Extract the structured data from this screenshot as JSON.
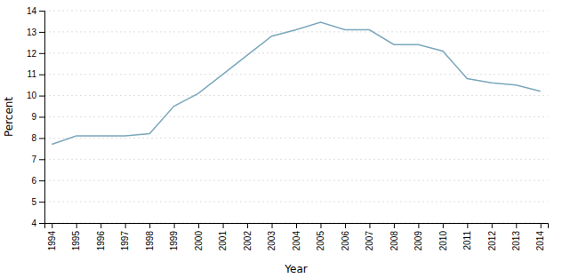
{
  "chart_data": {
    "type": "line",
    "x": [
      1994,
      1995,
      1996,
      1997,
      1998,
      1999,
      2000,
      2001,
      2002,
      2003,
      2004,
      2005,
      2006,
      2007,
      2008,
      2009,
      2010,
      2011,
      2012,
      2013,
      2014
    ],
    "values": [
      7.7,
      8.1,
      8.1,
      8.1,
      8.2,
      9.5,
      10.1,
      11.0,
      11.9,
      12.8,
      13.1,
      13.45,
      13.1,
      13.1,
      12.4,
      12.4,
      12.1,
      10.8,
      10.6,
      10.5,
      10.2
    ],
    "color": "#7BA7BC",
    "xlabel": "Year",
    "ylabel": "Percent",
    "xlim": [
      1993.7,
      2014.3
    ],
    "ylim": [
      4,
      14
    ],
    "xticks": [
      1994,
      1995,
      1996,
      1997,
      1998,
      1999,
      2000,
      2001,
      2002,
      2003,
      2004,
      2005,
      2006,
      2007,
      2008,
      2009,
      2010,
      2011,
      2012,
      2013,
      2014
    ],
    "yticks": [
      4,
      5,
      6,
      7,
      8,
      9,
      10,
      11,
      12,
      13,
      14
    ],
    "grid": true
  }
}
